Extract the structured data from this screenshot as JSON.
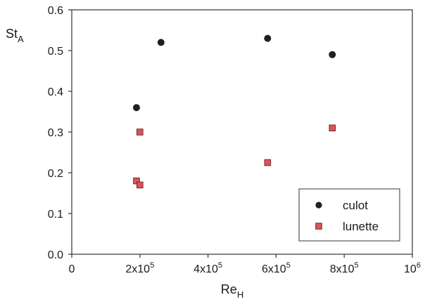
{
  "chart_data": {
    "type": "scatter",
    "title": "",
    "xlabel": {
      "main": "Re",
      "sub": "H"
    },
    "ylabel": {
      "main": "St",
      "sub": "A"
    },
    "xlim": [
      0,
      1000000
    ],
    "ylim": [
      0,
      0.6
    ],
    "x_ticks": [
      {
        "value": 0,
        "base": "0",
        "exp": ""
      },
      {
        "value": 200000,
        "base": "2x10",
        "exp": "5"
      },
      {
        "value": 400000,
        "base": "4x10",
        "exp": "5"
      },
      {
        "value": 600000,
        "base": "6x10",
        "exp": "5"
      },
      {
        "value": 800000,
        "base": "8x10",
        "exp": "5"
      },
      {
        "value": 1000000,
        "base": "10",
        "exp": "6"
      }
    ],
    "y_ticks": [
      {
        "value": 0.0,
        "label": "0.0"
      },
      {
        "value": 0.1,
        "label": "0.1"
      },
      {
        "value": 0.2,
        "label": "0.2"
      },
      {
        "value": 0.3,
        "label": "0.3"
      },
      {
        "value": 0.4,
        "label": "0.4"
      },
      {
        "value": 0.5,
        "label": "0.5"
      },
      {
        "value": 0.6,
        "label": "0.6"
      }
    ],
    "grid": false,
    "legend_position": "bottom-right",
    "series": [
      {
        "name": "culot",
        "marker": "circle",
        "color": "#1b2227",
        "points": [
          {
            "x": 190000,
            "y": 0.36
          },
          {
            "x": 262000,
            "y": 0.52
          },
          {
            "x": 575000,
            "y": 0.53
          },
          {
            "x": 765000,
            "y": 0.49
          }
        ]
      },
      {
        "name": "lunette",
        "marker": "square",
        "color": "#d9545b",
        "edge": "#7a2a2e",
        "points": [
          {
            "x": 200000,
            "y": 0.3
          },
          {
            "x": 190000,
            "y": 0.18
          },
          {
            "x": 200000,
            "y": 0.17
          },
          {
            "x": 575000,
            "y": 0.225
          },
          {
            "x": 765000,
            "y": 0.31
          }
        ]
      }
    ]
  }
}
